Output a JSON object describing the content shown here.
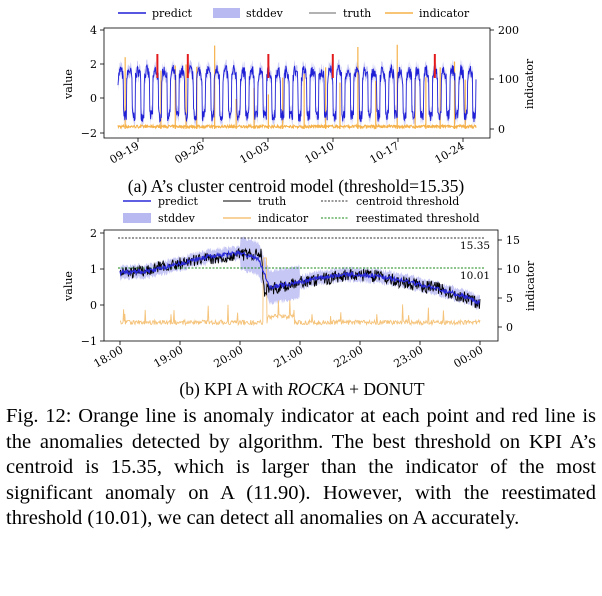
{
  "panel_a": {
    "caption_prefix": "(a) A’s cluster centroid model (threshold=15.35)",
    "legend": {
      "predict": "predict",
      "stddev": "stddev",
      "truth": "truth",
      "indicator": "indicator"
    },
    "ylabel_left": "value",
    "ylabel_right": "indicator",
    "colors": {
      "predict": "#1f1fd6",
      "stddev": "#b9b9f2",
      "truth": "#666666",
      "indicator": "#f5b24a",
      "anomaly": "#e31a1c"
    }
  },
  "panel_b": {
    "caption_prefix": "(b) KPI A with ",
    "caption_italic": "ROCKA",
    "caption_suffix": " + DONUT",
    "legend": {
      "predict": "predict",
      "truth": "truth",
      "centroid_threshold": "centroid threshold",
      "stddev": "stddev",
      "indicator": "indicator",
      "reestimated_threshold": "reestimated threshold"
    },
    "ylabel_left": "value",
    "ylabel_right": "indicator",
    "threshold_labels": {
      "centroid": "15.35",
      "reestimated": "10.01"
    },
    "colors": {
      "predict": "#2a2ad8",
      "stddev": "#b9b9f2",
      "truth": "#000000",
      "indicator": "#f5c37a",
      "centroid": "#333333",
      "reestimated": "#1a8a1a"
    }
  },
  "caption": "Fig. 12: Orange line is anomaly indicator at each point and red line is the anomalies detected by algorithm. The best threshold on KPI A’s centroid is 15.35, which is larger than the indicator of the most significant anomaly on A (11.90). However, with the reestimated threshold (10.01), we can detect all anomalies on A accurately.",
  "chart_data": [
    {
      "type": "line",
      "x_ticks": [
        "09-19",
        "09-26",
        "10-03",
        "10-10",
        "10-17",
        "10-24"
      ],
      "y_ticks_left": [
        "−2",
        "0",
        "2",
        "4"
      ],
      "y_ticks_right": [
        "0",
        "100",
        "200"
      ],
      "ylim_left": [
        -2,
        4
      ],
      "ylim_right": [
        -5,
        200
      ],
      "legend_placement": "top",
      "grid": false,
      "series": [
        {
          "name": "predict",
          "values": "daily periodic signal, oscillating about 0 between -1 and 1.8"
        },
        {
          "name": "stddev"
        },
        {
          "name": "truth"
        },
        {
          "name": "indicator",
          "spike_count": 21
        }
      ],
      "anomaly_positions": [
        0.11,
        0.195,
        0.42,
        0.6,
        0.885
      ]
    },
    {
      "type": "line",
      "x_ticks": [
        "18:00",
        "19:00",
        "20:00",
        "21:00",
        "22:00",
        "23:00",
        "00:00"
      ],
      "y_ticks_left": [
        "−1",
        "0",
        "1",
        "2"
      ],
      "y_ticks_right": [
        "0",
        "5",
        "10",
        "15"
      ],
      "ylim_left": [
        -1,
        2
      ],
      "ylim_right": [
        -1,
        16
      ],
      "legend_placement": "top",
      "grid": false,
      "thresholds": {
        "centroid_threshold": 15.35,
        "reestimated_threshold": 10.01
      },
      "series": [
        {
          "name": "predict",
          "x": [
            0,
            0.5,
            1,
            1.5,
            2,
            2.3,
            2.5,
            2.9,
            3.3,
            3.8,
            4.3,
            4.8,
            5.3,
            5.8,
            6.0
          ],
          "values": [
            0.9,
            0.95,
            1.15,
            1.35,
            1.45,
            1.3,
            0.5,
            0.6,
            0.75,
            0.85,
            0.8,
            0.65,
            0.45,
            0.2,
            0.05
          ]
        },
        {
          "name": "truth",
          "x": [
            0,
            0.5,
            1,
            1.5,
            2,
            2.35,
            2.4,
            2.9,
            3.3,
            3.8,
            4.3,
            4.8,
            5.3,
            5.8,
            6.0
          ],
          "values": [
            0.85,
            1.0,
            1.15,
            1.3,
            1.4,
            1.4,
            0.4,
            0.6,
            0.7,
            0.85,
            0.8,
            0.6,
            0.45,
            0.2,
            0.0
          ]
        },
        {
          "name": "stddev"
        },
        {
          "name": "indicator"
        }
      ]
    }
  ]
}
